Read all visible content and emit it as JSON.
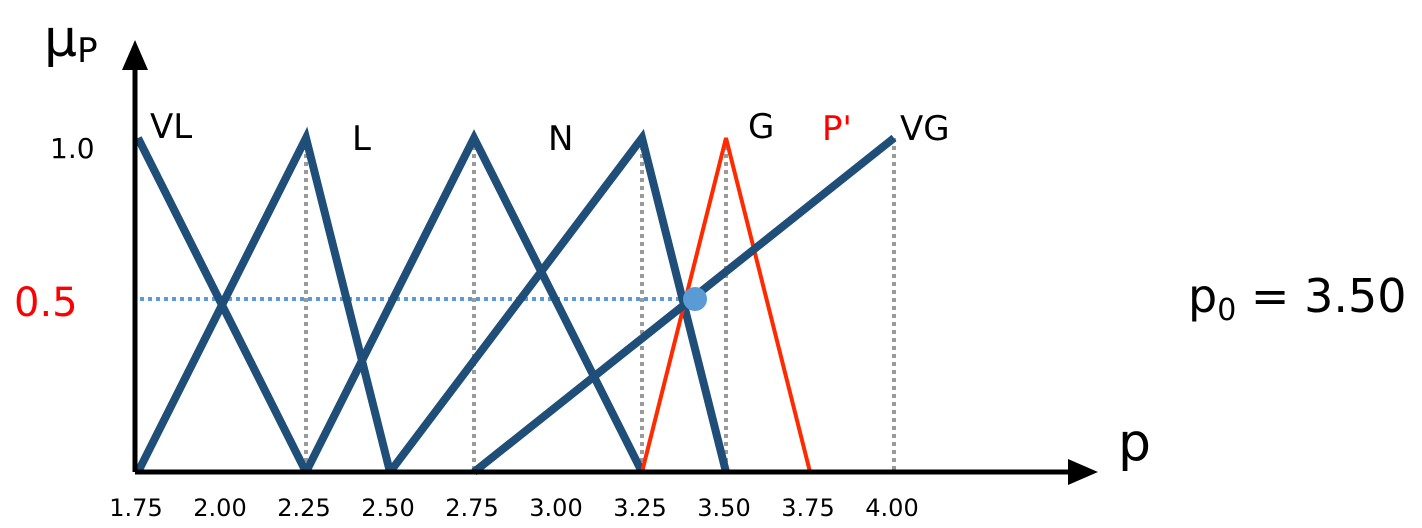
{
  "chart_data": {
    "type": "line",
    "y_axis_label": "μ",
    "y_axis_label_sub": "P",
    "x_axis_label": "p",
    "xlim": [
      1.75,
      4.0
    ],
    "ylim": [
      0,
      1.0
    ],
    "x_ticks": [
      "1.75",
      "2.00",
      "2.25",
      "2.50",
      "2.75",
      "3.00",
      "3.25",
      "3.50",
      "3.75",
      "4.00"
    ],
    "y_ticks": [
      "1.0"
    ],
    "grid_verticals": [
      2.25,
      2.75,
      3.25,
      3.5,
      4.0
    ],
    "series": [
      {
        "name": "VL",
        "color": "#1f4e79",
        "points": [
          [
            1.75,
            1.0
          ],
          [
            2.25,
            0.0
          ]
        ]
      },
      {
        "name": "L",
        "color": "#1f4e79",
        "points": [
          [
            1.75,
            0.0
          ],
          [
            2.25,
            1.0
          ],
          [
            2.5,
            0.0
          ]
        ]
      },
      {
        "name": "N",
        "color": "#1f4e79",
        "points": [
          [
            2.25,
            0.0
          ],
          [
            2.75,
            1.0
          ],
          [
            3.25,
            0.0
          ]
        ]
      },
      {
        "name": "G",
        "color": "#1f4e79",
        "points": [
          [
            2.5,
            0.0
          ],
          [
            3.25,
            1.0
          ],
          [
            3.5,
            0.0
          ]
        ]
      },
      {
        "name": "P'",
        "color": "#ff2a00",
        "points": [
          [
            3.25,
            0.0
          ],
          [
            3.5,
            1.0
          ],
          [
            3.75,
            0.0
          ]
        ]
      },
      {
        "name": "VG",
        "color": "#1f4e79",
        "points": [
          [
            2.75,
            0.0
          ],
          [
            4.0,
            1.0
          ]
        ]
      }
    ],
    "alpha_cut": {
      "label": "0.5",
      "value": 0.5,
      "color": "#ff0000",
      "line_color": "#5b9bd5"
    },
    "intersection_point": {
      "x": 3.39,
      "y": 0.55,
      "color": "#5b9bd5"
    },
    "annotation": {
      "p0_text": "p",
      "p0_sub": "0",
      "p0_value_text": " = 3.50"
    }
  }
}
